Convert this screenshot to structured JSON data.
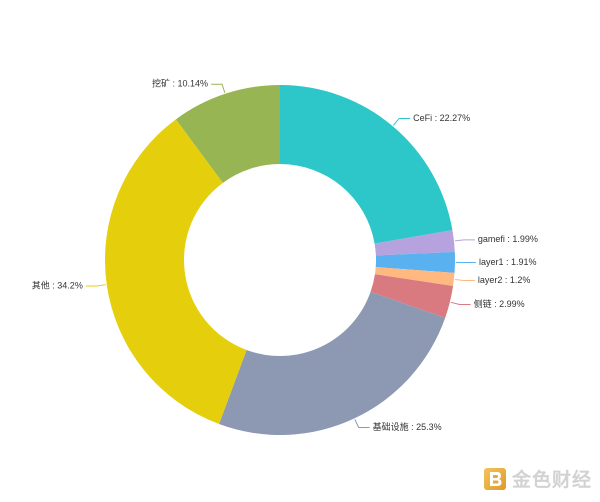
{
  "chart_data": {
    "type": "pie",
    "style": "donut",
    "title": "",
    "legend": "none",
    "categories": [
      "CeFi",
      "gamefi",
      "layer1",
      "layer2",
      "侧链",
      "基础设施",
      "其他",
      "挖矿"
    ],
    "values": [
      22.27,
      1.99,
      1.91,
      1.2,
      2.99,
      25.3,
      34.2,
      10.14
    ],
    "unit": "%",
    "label_separator": " : ",
    "colors": [
      "#2EC7C9",
      "#B6A2DE",
      "#5AB1EF",
      "#FFB980",
      "#D87A80",
      "#8D98B3",
      "#E5CF0D",
      "#97B552"
    ],
    "start": "top",
    "direction": "clockwise"
  },
  "watermark": {
    "text": "金色财经",
    "logo_color": "#E9A83A"
  }
}
